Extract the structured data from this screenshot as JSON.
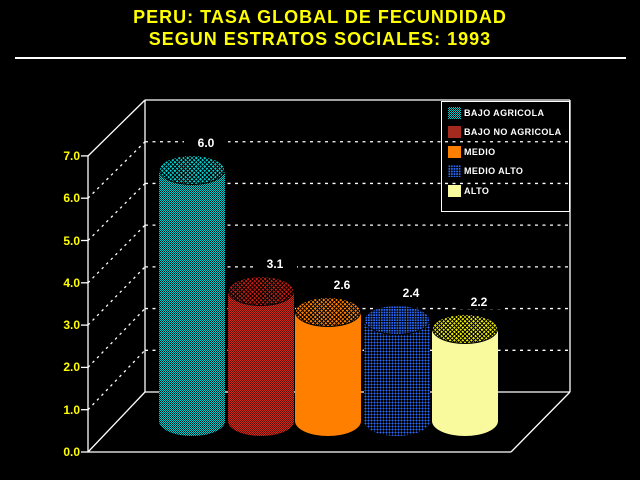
{
  "title": {
    "line1": "PERU: TASA GLOBAL DE FECUNDIDAD",
    "line2": "SEGUN ESTRATOS SOCIALES: 1993"
  },
  "colors": {
    "background": "#000000",
    "title_text": "#ffff00",
    "axis_text": "#ffff00",
    "value_text": "#ffffff",
    "frame_lines": "#ffffff"
  },
  "chart_data": {
    "type": "bar",
    "style": "3d-cylinder, black background, white dashed gridlines on back wall",
    "title": "PERU: TASA GLOBAL DE FECUNDIDAD SEGUN ESTRATOS SOCIALES: 1993",
    "categories": [
      "BAJO AGRICOLA",
      "BAJO NO AGRICOLA",
      "MEDIO",
      "MEDIO ALTO",
      "ALTO"
    ],
    "values": [
      6.0,
      3.1,
      2.6,
      2.4,
      2.2
    ],
    "value_labels": [
      "6.0",
      "3.1",
      "2.6",
      "2.4",
      "2.2"
    ],
    "xlabel": "",
    "ylabel": "",
    "ylim": [
      0,
      7
    ],
    "yticks": [
      0,
      1,
      2,
      3,
      4,
      5,
      6,
      7
    ],
    "ytick_labels": [
      "0.0",
      "1.0",
      "2.0",
      "3.0",
      "4.0",
      "5.0",
      "6.0",
      "7.0"
    ],
    "grid": "horizontal dashed, values 1-6, plus dashed diagonals on left side wall",
    "legend_position": "top-right, transparent with white border",
    "series_styles": [
      {
        "label": "BAJO AGRICOLA",
        "main": "#00cdcd",
        "dark": "#002626",
        "topBase": "#00cdcd",
        "bodyPattern": "checker",
        "topPattern": "cross",
        "swatch": "checker"
      },
      {
        "label": "BAJO NO AGRICOLA",
        "main": "#cf2a1b",
        "dark": "#5f0d05",
        "topBase": "#c41d10",
        "bodyPattern": "checker",
        "topPattern": "cross",
        "swatch": "solid",
        "swatchColor": "#a52a1e"
      },
      {
        "label": "MEDIO",
        "main": "#ff7f00",
        "dark": "#ff7f00",
        "topBase": "#ff7f00",
        "bodyPattern": "solid",
        "topPattern": "cross",
        "swatch": "solid",
        "swatchColor": "#ff7f00"
      },
      {
        "label": "MEDIO ALTO",
        "main": "#2a6aff",
        "dark": "#000000",
        "topBase": "#2a6aff",
        "bodyPattern": "dots",
        "topPattern": "dots",
        "swatch": "dots",
        "swatchColor": "#2a6aff"
      },
      {
        "label": "ALTO",
        "main": "#f9f99e",
        "dark": "#f9f99e",
        "topBase": "#e8e800",
        "bodyPattern": "solid",
        "topPattern": "cross",
        "swatch": "solid",
        "swatchColor": "#f9f99e"
      }
    ]
  },
  "legend": {
    "items": [
      "BAJO AGRICOLA",
      "BAJO NO AGRICOLA",
      "MEDIO",
      "MEDIO ALTO",
      "ALTO"
    ]
  }
}
